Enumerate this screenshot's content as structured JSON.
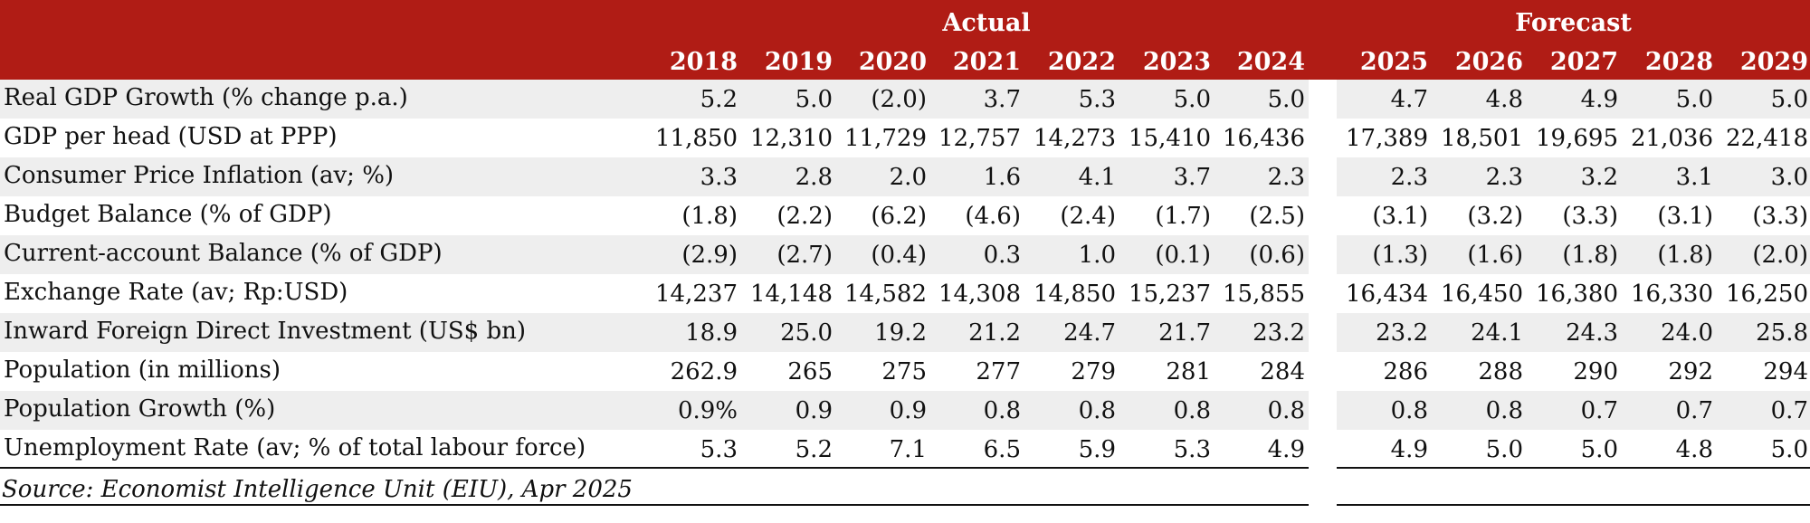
{
  "header": {
    "actual_label": "Actual",
    "forecast_label": "Forecast",
    "years": [
      "2018",
      "2019",
      "2020",
      "2021",
      "2022",
      "2023",
      "2024",
      "2025",
      "2026",
      "2027",
      "2028",
      "2029"
    ]
  },
  "rows": [
    {
      "label": "Real GDP Growth (% change p.a.)",
      "values": [
        "5.2",
        "5.0",
        "(2.0)",
        "3.7",
        "5.3",
        "5.0",
        "5.0",
        "4.7",
        "4.8",
        "4.9",
        "5.0",
        "5.0"
      ]
    },
    {
      "label": "GDP per head (USD at PPP)",
      "values": [
        "11,850",
        "12,310",
        "11,729",
        "12,757",
        "14,273",
        "15,410",
        "16,436",
        "17,389",
        "18,501",
        "19,695",
        "21,036",
        "22,418"
      ]
    },
    {
      "label": "Consumer Price Inflation (av; %)",
      "values": [
        "3.3",
        "2.8",
        "2.0",
        "1.6",
        "4.1",
        "3.7",
        "2.3",
        "2.3",
        "2.3",
        "3.2",
        "3.1",
        "3.0"
      ]
    },
    {
      "label": "Budget Balance (% of GDP)",
      "values": [
        "(1.8)",
        "(2.2)",
        "(6.2)",
        "(4.6)",
        "(2.4)",
        "(1.7)",
        "(2.5)",
        "(3.1)",
        "(3.2)",
        "(3.3)",
        "(3.1)",
        "(3.3)"
      ]
    },
    {
      "label": "Current-account Balance (% of GDP)",
      "values": [
        "(2.9)",
        "(2.7)",
        "(0.4)",
        "0.3",
        "1.0",
        "(0.1)",
        "(0.6)",
        "(1.3)",
        "(1.6)",
        "(1.8)",
        "(1.8)",
        "(2.0)"
      ]
    },
    {
      "label": "Exchange Rate (av; Rp:USD)",
      "values": [
        "14,237",
        "14,148",
        "14,582",
        "14,308",
        "14,850",
        "15,237",
        "15,855",
        "16,434",
        "16,450",
        "16,380",
        "16,330",
        "16,250"
      ]
    },
    {
      "label": "Inward Foreign Direct Investment (US$ bn)",
      "values": [
        "18.9",
        "25.0",
        "19.2",
        "21.2",
        "24.7",
        "21.7",
        "23.2",
        "23.2",
        "24.1",
        "24.3",
        "24.0",
        "25.8"
      ]
    },
    {
      "label": "Population (in millions)",
      "values": [
        "262.9",
        "265",
        "275",
        "277",
        "279",
        "281",
        "284",
        "286",
        "288",
        "290",
        "292",
        "294"
      ]
    },
    {
      "label": "Population Growth (%)",
      "values": [
        "0.9%",
        "0.9",
        "0.9",
        "0.8",
        "0.8",
        "0.8",
        "0.8",
        "0.8",
        "0.8",
        "0.7",
        "0.7",
        "0.7"
      ]
    },
    {
      "label": "Unemployment Rate (av; % of total labour force)",
      "values": [
        "5.3",
        "5.2",
        "7.1",
        "6.5",
        "5.9",
        "5.3",
        "4.9",
        "4.9",
        "5.0",
        "5.0",
        "4.8",
        "5.0"
      ]
    }
  ],
  "source": "Source: Economist Intelligence Unit (EIU), Apr 2025",
  "colors": {
    "header_bg": "#b01c15",
    "row_shade": "#eeeeee"
  }
}
